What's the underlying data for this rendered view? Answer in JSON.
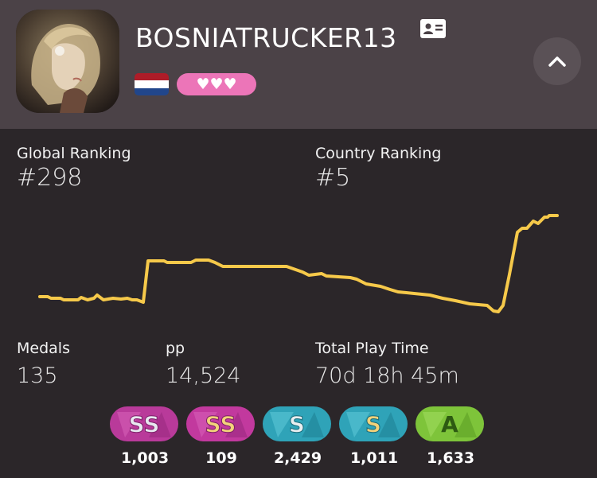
{
  "profile": {
    "username": "BOSNIATRUCKER13",
    "country_flag": "Netherlands",
    "supporter_hearts": "♥♥♥",
    "colors": {
      "header_bg": "#4b4247",
      "page_bg": "#2b2629",
      "supporter_pink": "#ec75b8",
      "graph_line": "#f6c94a"
    }
  },
  "stats": {
    "global_ranking_label": "Global Ranking",
    "global_ranking_value": "#298",
    "country_ranking_label": "Country Ranking",
    "country_ranking_value": "#5",
    "medals_label": "Medals",
    "medals_value": "135",
    "pp_label": "pp",
    "pp_value": "14,524",
    "play_time_label": "Total Play Time",
    "play_time_value": "70d 18h 45m"
  },
  "grades": [
    {
      "grade": "SS",
      "variant": "silver",
      "count": "1,003"
    },
    {
      "grade": "SS",
      "variant": "gold",
      "count": "109"
    },
    {
      "grade": "S",
      "variant": "silver",
      "count": "2,429"
    },
    {
      "grade": "S",
      "variant": "gold",
      "count": "1,011"
    },
    {
      "grade": "A",
      "variant": "green",
      "count": "1,633"
    }
  ],
  "icons": {
    "profile_card": "id-card-icon",
    "collapse": "chevron-up-icon"
  }
}
